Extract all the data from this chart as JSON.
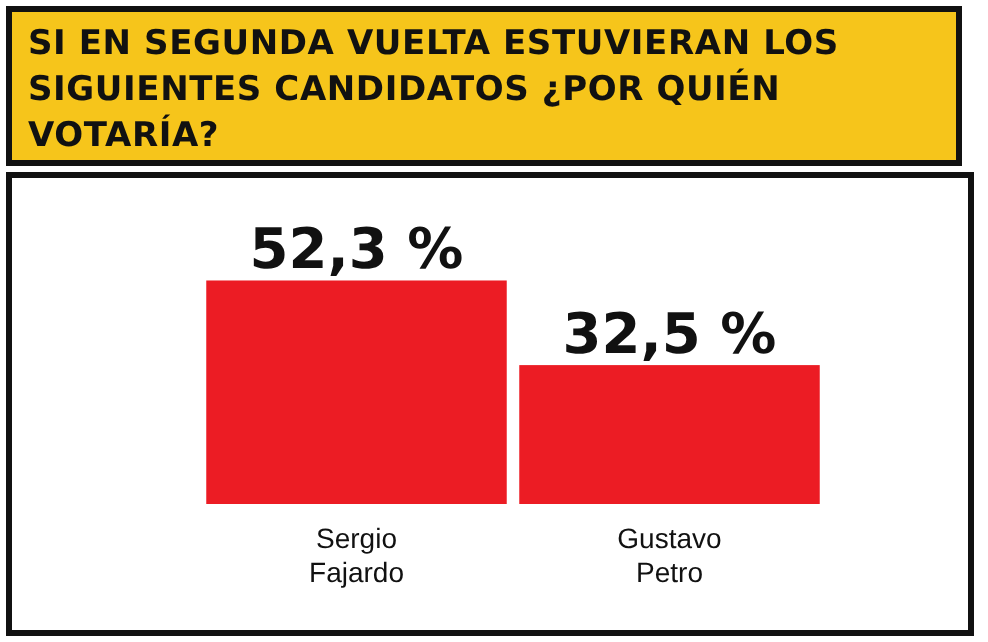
{
  "chart_data": {
    "type": "bar",
    "title": "SI EN SEGUNDA VUELTA ESTUVIERAN LOS SIGUIENTES CANDIDATOS ¿POR QUIÉN VOTARÍA?",
    "categories": [
      "Sergio Fajardo",
      "Gustavo Petro"
    ],
    "values": [
      52.3,
      32.5
    ],
    "value_labels": [
      "52,3 %",
      "32,5 %"
    ],
    "color": "#ec1c24",
    "relative": false
  }
}
